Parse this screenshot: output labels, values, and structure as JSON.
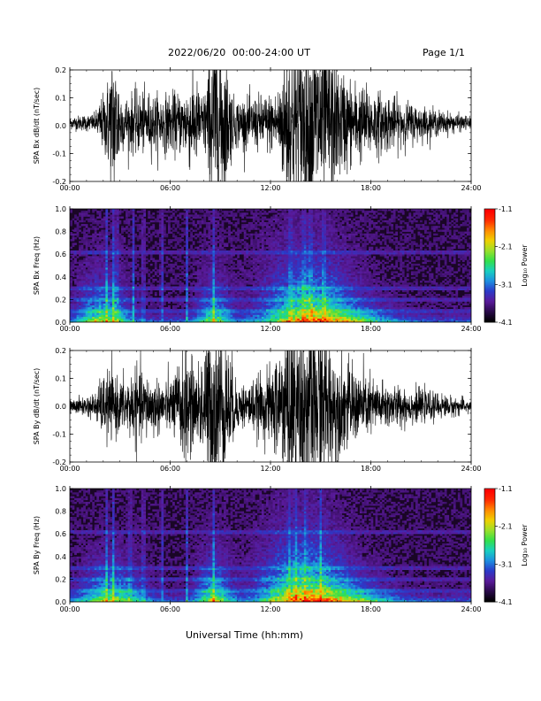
{
  "header": {
    "title": "2022/06/20  00:00-24:00 UT",
    "page": "Page 1/1"
  },
  "footer": {
    "xlabel": "Universal Time (hh:mm)"
  },
  "colors": {
    "trace": "#000000",
    "spectrogram_background": "#1a0626",
    "colormap": [
      "#000000",
      "#2a0a4a",
      "#5a1a9a",
      "#2b39c9",
      "#1d8fe0",
      "#18d0c0",
      "#33e04a",
      "#9be02a",
      "#f0d000",
      "#ff8a00",
      "#ff2a00",
      "#ff0000"
    ]
  },
  "chart_data": [
    {
      "type": "line",
      "ylabel": "SPA Bx dB/dt (nT/sec)",
      "xlim": [
        "00:00",
        "24:00"
      ],
      "x_ticks": [
        "00:00",
        "06:00",
        "12:00",
        "18:00",
        "24:00"
      ],
      "ylim": [
        -0.2,
        0.2
      ],
      "y_ticks": [
        "-0.2",
        "-0.1",
        "0.0",
        "0.1",
        "0.2"
      ],
      "activity_profile": [
        {
          "t": 0,
          "amp": 0.02
        },
        {
          "t": 1.5,
          "amp": 0.03
        },
        {
          "t": 2.2,
          "amp": 0.12
        },
        {
          "t": 2.6,
          "amp": 0.25
        },
        {
          "t": 3.2,
          "amp": 0.08
        },
        {
          "t": 4.0,
          "amp": 0.1
        },
        {
          "t": 5.5,
          "amp": 0.09
        },
        {
          "t": 6.8,
          "amp": 0.1
        },
        {
          "t": 7.3,
          "amp": 0.16
        },
        {
          "t": 8.0,
          "amp": 0.09
        },
        {
          "t": 8.6,
          "amp": 0.3
        },
        {
          "t": 9.2,
          "amp": 0.25
        },
        {
          "t": 9.8,
          "amp": 0.08
        },
        {
          "t": 10.8,
          "amp": 0.08
        },
        {
          "t": 11.5,
          "amp": 0.09
        },
        {
          "t": 12.4,
          "amp": 0.1
        },
        {
          "t": 13.1,
          "amp": 0.3
        },
        {
          "t": 14.0,
          "amp": 0.28
        },
        {
          "t": 15.0,
          "amp": 0.3
        },
        {
          "t": 16.0,
          "amp": 0.18
        },
        {
          "t": 17.0,
          "amp": 0.13
        },
        {
          "t": 18.5,
          "amp": 0.1
        },
        {
          "t": 20.0,
          "amp": 0.07
        },
        {
          "t": 22.0,
          "amp": 0.04
        },
        {
          "t": 24.0,
          "amp": 0.02
        }
      ],
      "offset": 0.01
    },
    {
      "type": "heatmap",
      "ylabel": "SPA Bx Freq (Hz)",
      "xlim": [
        "00:00",
        "24:00"
      ],
      "x_ticks": [
        "00:00",
        "06:00",
        "12:00",
        "18:00",
        "24:00"
      ],
      "ylim": [
        0.0,
        1.0
      ],
      "y_ticks": [
        "0.0",
        "0.2",
        "0.4",
        "0.6",
        "0.8",
        "1.0"
      ],
      "colorbar": {
        "label": "Log₁₀ Power",
        "range": [
          -4.1,
          -1.1
        ],
        "ticks": [
          "-1.1",
          "-2.1",
          "-3.1",
          "-4.1"
        ]
      },
      "burst_times_hr": [
        2.2,
        2.6,
        2.8,
        3.8,
        4.4,
        5.5,
        7.0,
        8.6,
        13.2,
        14.0,
        14.4,
        15.2
      ],
      "broad_activity": [
        {
          "t": 2.0,
          "w": 1.5,
          "f": 0.25,
          "p": 0.55
        },
        {
          "t": 8.6,
          "w": 1.0,
          "f": 0.25,
          "p": 0.45
        },
        {
          "t": 14.2,
          "w": 2.5,
          "f": 0.35,
          "p": 0.7
        },
        {
          "t": 17.0,
          "w": 2.5,
          "f": 0.12,
          "p": 0.35
        }
      ],
      "line_freqs_hz": [
        0.1,
        0.2,
        0.3,
        0.62
      ]
    },
    {
      "type": "line",
      "ylabel": "SPA By dB/dt (nT/sec)",
      "xlim": [
        "00:00",
        "24:00"
      ],
      "x_ticks": [
        "00:00",
        "06:00",
        "12:00",
        "18:00",
        "24:00"
      ],
      "ylim": [
        -0.2,
        0.2
      ],
      "y_ticks": [
        "-0.2",
        "-0.1",
        "0.0",
        "0.1",
        "0.2"
      ],
      "activity_profile": [
        {
          "t": 0,
          "amp": 0.02
        },
        {
          "t": 1.5,
          "amp": 0.04
        },
        {
          "t": 2.2,
          "amp": 0.12
        },
        {
          "t": 3.0,
          "amp": 0.08
        },
        {
          "t": 4.0,
          "amp": 0.12
        },
        {
          "t": 5.0,
          "amp": 0.09
        },
        {
          "t": 6.0,
          "amp": 0.08
        },
        {
          "t": 7.0,
          "amp": 0.2
        },
        {
          "t": 7.5,
          "amp": 0.1
        },
        {
          "t": 8.6,
          "amp": 0.3
        },
        {
          "t": 9.2,
          "amp": 0.25
        },
        {
          "t": 10.0,
          "amp": 0.07
        },
        {
          "t": 11.0,
          "amp": 0.08
        },
        {
          "t": 12.0,
          "amp": 0.12
        },
        {
          "t": 13.2,
          "amp": 0.3
        },
        {
          "t": 14.0,
          "amp": 0.3
        },
        {
          "t": 15.0,
          "amp": 0.28
        },
        {
          "t": 16.0,
          "amp": 0.16
        },
        {
          "t": 17.0,
          "amp": 0.12
        },
        {
          "t": 18.5,
          "amp": 0.08
        },
        {
          "t": 20.0,
          "amp": 0.06
        },
        {
          "t": 22.0,
          "amp": 0.04
        },
        {
          "t": 24.0,
          "amp": 0.02
        }
      ],
      "offset": 0.0
    },
    {
      "type": "heatmap",
      "ylabel": "SPA By Freq (Hz)",
      "xlim": [
        "00:00",
        "24:00"
      ],
      "x_ticks": [
        "00:00",
        "06:00",
        "12:00",
        "18:00",
        "24:00"
      ],
      "ylim": [
        0.0,
        1.0
      ],
      "y_ticks": [
        "0.0",
        "0.2",
        "0.4",
        "0.6",
        "0.8",
        "1.0"
      ],
      "colorbar": {
        "label": "Log₁₀ Power",
        "range": [
          -4.1,
          -1.1
        ],
        "ticks": [
          "-1.1",
          "-2.1",
          "-3.1",
          "-4.1"
        ]
      },
      "burst_times_hr": [
        2.2,
        2.6,
        3.6,
        4.4,
        5.5,
        7.0,
        8.6,
        13.1,
        13.5,
        14.1,
        15.0
      ],
      "broad_activity": [
        {
          "t": 2.5,
          "w": 1.8,
          "f": 0.22,
          "p": 0.55
        },
        {
          "t": 8.6,
          "w": 1.0,
          "f": 0.25,
          "p": 0.55
        },
        {
          "t": 14.0,
          "w": 2.5,
          "f": 0.35,
          "p": 0.75
        },
        {
          "t": 17.0,
          "w": 2.5,
          "f": 0.12,
          "p": 0.4
        }
      ],
      "line_freqs_hz": [
        0.1,
        0.2,
        0.3,
        0.62
      ]
    }
  ]
}
